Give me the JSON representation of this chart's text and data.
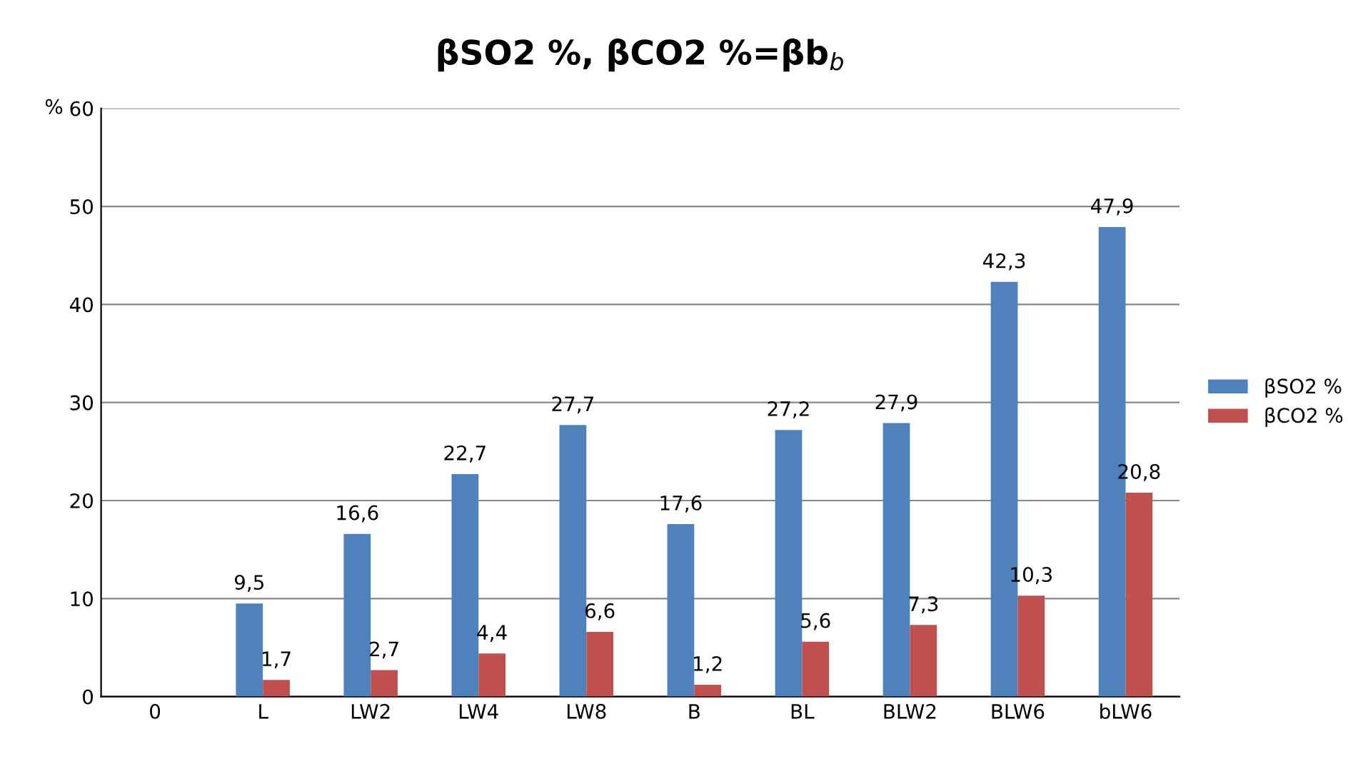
{
  "chart_data": {
    "type": "bar",
    "title": "βSO2 %, βCO2 %=βb$_{b}$",
    "ylabel": "%",
    "categories": [
      "0",
      "L",
      "LW2",
      "LW4",
      "LW8",
      "B",
      "BL",
      "BLW2",
      "BLW6",
      "bLW6"
    ],
    "series": [
      {
        "name": "βSO2 %",
        "color": "#4f81bd",
        "values": [
          null,
          9.5,
          16.6,
          22.7,
          27.7,
          17.6,
          27.2,
          27.9,
          42.3,
          47.9
        ],
        "value_labels": [
          null,
          "9,5",
          "16,6",
          "22,7",
          "27,7",
          "17,6",
          "27,2",
          "27,9",
          "42,3",
          "47,9"
        ]
      },
      {
        "name": "βCO2 %",
        "color": "#c0504d",
        "values": [
          null,
          1.7,
          2.7,
          4.4,
          6.6,
          1.2,
          5.6,
          7.3,
          10.3,
          20.8
        ],
        "value_labels": [
          null,
          "1,7",
          "2,7",
          "4,4",
          "6,6",
          "1,2",
          "5,6",
          "7,3",
          "10,3",
          "20,8"
        ]
      }
    ],
    "ylim": [
      0,
      60
    ],
    "yticks": [
      0,
      10,
      20,
      30,
      40,
      50,
      60
    ],
    "grid": "y",
    "legend": "right"
  }
}
